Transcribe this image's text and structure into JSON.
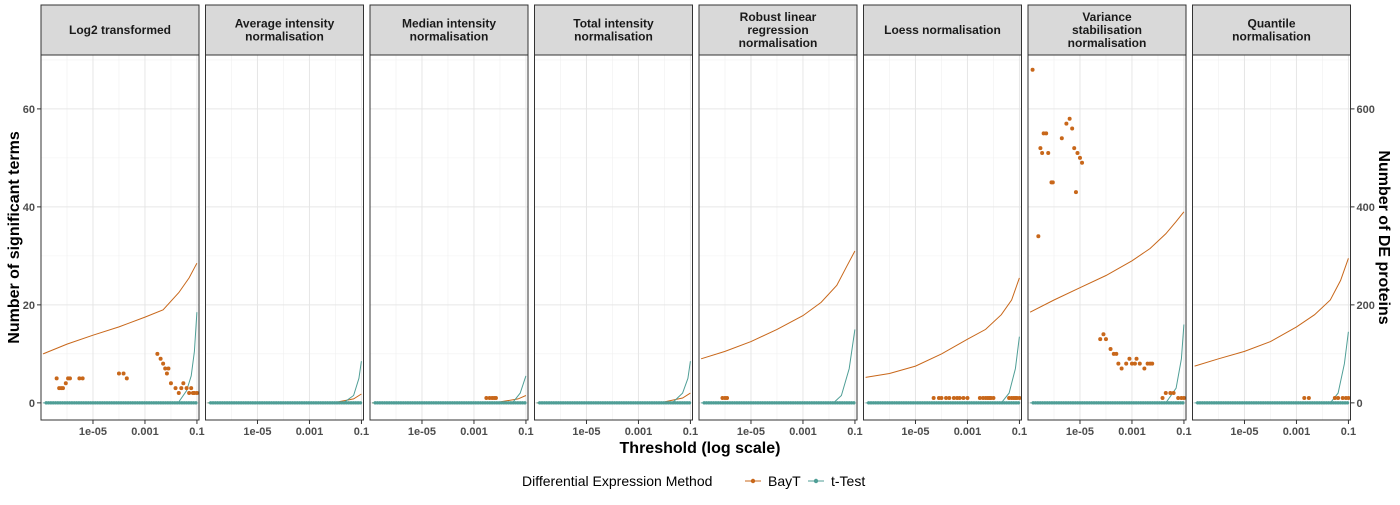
{
  "chart_data": {
    "type": "line",
    "xlabel": "Threshold (log scale)",
    "ylabel": "Number of significant terms",
    "y2label": "Number of DE proteins",
    "x_scale": "log10",
    "xlim": [
      1e-07,
      0.12
    ],
    "ylim": [
      -3.5,
      71
    ],
    "y2_range": [
      -35,
      710
    ],
    "x_ticks": [
      1e-05,
      0.001,
      0.1
    ],
    "x_tick_labels": [
      "1e-05",
      "0.001",
      "0.1"
    ],
    "y_ticks": [
      0,
      20,
      40,
      60
    ],
    "y2_ticks": [
      0,
      200,
      400,
      600
    ],
    "grid": true,
    "colors": {
      "BayT": "#c8671a",
      "t-Test": "#4f9e96"
    },
    "legend": {
      "title": "Differential Expression Method",
      "position": "bottom",
      "entries": [
        "BayT",
        "t-Test"
      ]
    },
    "description": "Lines = number of DE proteins (right axis); points = number of significant terms (left axis). Y values in left-axis units.",
    "panels": [
      {
        "title": "Log2 transformed",
        "bayt_line": {
          "x": [
            1.2e-07,
            1e-06,
            1e-05,
            0.0001,
            0.001,
            0.005,
            0.02,
            0.05,
            0.1
          ],
          "y": [
            10,
            12,
            13.8,
            15.5,
            17.5,
            19,
            22.5,
            25.5,
            28.5
          ]
        },
        "ttest_line": {
          "x": [
            1.2e-07,
            0.01,
            0.02,
            0.04,
            0.06,
            0.08,
            0.1
          ],
          "y": [
            0,
            0,
            0.2,
            2.5,
            5.5,
            10.5,
            18.5
          ]
        },
        "bayt_points": [
          {
            "x": 4e-07,
            "y": 5
          },
          {
            "x": 5e-07,
            "y": 3
          },
          {
            "x": 6e-07,
            "y": 3
          },
          {
            "x": 7e-07,
            "y": 3
          },
          {
            "x": 9e-07,
            "y": 4
          },
          {
            "x": 1.1e-06,
            "y": 5
          },
          {
            "x": 1.3e-06,
            "y": 5
          },
          {
            "x": 3e-06,
            "y": 5
          },
          {
            "x": 4e-06,
            "y": 5
          },
          {
            "x": 0.0001,
            "y": 6
          },
          {
            "x": 0.00015,
            "y": 6
          },
          {
            "x": 0.0002,
            "y": 5
          },
          {
            "x": 0.003,
            "y": 10
          },
          {
            "x": 0.004,
            "y": 9
          },
          {
            "x": 0.005,
            "y": 8
          },
          {
            "x": 0.006,
            "y": 7
          },
          {
            "x": 0.007,
            "y": 6
          },
          {
            "x": 0.008,
            "y": 7
          },
          {
            "x": 0.01,
            "y": 4
          },
          {
            "x": 0.015,
            "y": 3
          },
          {
            "x": 0.02,
            "y": 2
          },
          {
            "x": 0.025,
            "y": 3
          },
          {
            "x": 0.03,
            "y": 4
          },
          {
            "x": 0.04,
            "y": 3
          },
          {
            "x": 0.05,
            "y": 2
          },
          {
            "x": 0.06,
            "y": 3
          },
          {
            "x": 0.07,
            "y": 2
          },
          {
            "x": 0.08,
            "y": 2
          },
          {
            "x": 0.1,
            "y": 2
          }
        ]
      },
      {
        "title": "Average intensity normalisation",
        "bayt_line": {
          "x": [
            1.2e-07,
            0.001,
            0.01,
            0.05,
            0.1
          ],
          "y": [
            0,
            0,
            0.1,
            0.8,
            1.8
          ]
        },
        "ttest_line": {
          "x": [
            1.2e-07,
            0.02,
            0.05,
            0.08,
            0.1
          ],
          "y": [
            0,
            0,
            1.5,
            5,
            8.5
          ]
        },
        "bayt_points": []
      },
      {
        "title": "Median intensity normalisation",
        "bayt_line": {
          "x": [
            1.2e-07,
            0.001,
            0.01,
            0.05,
            0.1
          ],
          "y": [
            0,
            0,
            0.2,
            0.8,
            1.5
          ]
        },
        "ttest_line": {
          "x": [
            1.2e-07,
            0.03,
            0.06,
            0.1
          ],
          "y": [
            0,
            0,
            2,
            5.5
          ]
        },
        "bayt_points": [
          {
            "x": 0.003,
            "y": 1
          },
          {
            "x": 0.004,
            "y": 1
          },
          {
            "x": 0.005,
            "y": 1
          },
          {
            "x": 0.006,
            "y": 1
          },
          {
            "x": 0.007,
            "y": 1
          }
        ]
      },
      {
        "title": "Total intensity normalisation",
        "bayt_line": {
          "x": [
            1.2e-07,
            0.001,
            0.01,
            0.05,
            0.1
          ],
          "y": [
            0,
            0,
            0.2,
            1,
            2
          ]
        },
        "ttest_line": {
          "x": [
            1.2e-07,
            0.02,
            0.05,
            0.08,
            0.1
          ],
          "y": [
            0,
            0,
            2,
            5,
            8.5
          ]
        },
        "bayt_points": []
      },
      {
        "title": "Robust linear regression normalisation",
        "bayt_line": {
          "x": [
            1.2e-07,
            1e-06,
            1e-05,
            0.0001,
            0.001,
            0.005,
            0.02,
            0.05,
            0.1
          ],
          "y": [
            9,
            10.5,
            12.5,
            15,
            17.8,
            20.5,
            24,
            28,
            31
          ]
        },
        "ttest_line": {
          "x": [
            1.2e-07,
            0.015,
            0.03,
            0.06,
            0.1
          ],
          "y": [
            0,
            0,
            1.5,
            7,
            15
          ]
        },
        "bayt_points": [
          {
            "x": 8e-07,
            "y": 1
          },
          {
            "x": 1e-06,
            "y": 1
          },
          {
            "x": 1.2e-06,
            "y": 1
          }
        ]
      },
      {
        "title": "Loess normalisation",
        "bayt_line": {
          "x": [
            1.2e-07,
            1e-06,
            1e-05,
            0.0001,
            0.001,
            0.005,
            0.02,
            0.05,
            0.1
          ],
          "y": [
            5.2,
            6,
            7.5,
            10,
            13,
            15,
            18,
            21,
            25.5
          ]
        },
        "ttest_line": {
          "x": [
            1.2e-07,
            0.02,
            0.04,
            0.07,
            0.1
          ],
          "y": [
            0,
            0,
            2,
            7,
            13.5
          ]
        },
        "bayt_points": [
          {
            "x": 5e-05,
            "y": 1
          },
          {
            "x": 8e-05,
            "y": 1
          },
          {
            "x": 0.0001,
            "y": 1
          },
          {
            "x": 0.00015,
            "y": 1
          },
          {
            "x": 0.0002,
            "y": 1
          },
          {
            "x": 0.0003,
            "y": 1
          },
          {
            "x": 0.0004,
            "y": 1
          },
          {
            "x": 0.0005,
            "y": 1
          },
          {
            "x": 0.0007,
            "y": 1
          },
          {
            "x": 0.001,
            "y": 1
          },
          {
            "x": 0.003,
            "y": 1
          },
          {
            "x": 0.004,
            "y": 1
          },
          {
            "x": 0.005,
            "y": 1
          },
          {
            "x": 0.006,
            "y": 1
          },
          {
            "x": 0.007,
            "y": 1
          },
          {
            "x": 0.008,
            "y": 1
          },
          {
            "x": 0.01,
            "y": 1
          },
          {
            "x": 0.04,
            "y": 1
          },
          {
            "x": 0.05,
            "y": 1
          },
          {
            "x": 0.06,
            "y": 1
          },
          {
            "x": 0.07,
            "y": 1
          },
          {
            "x": 0.08,
            "y": 1
          },
          {
            "x": 0.1,
            "y": 1
          }
        ]
      },
      {
        "title": "Variance stabilisation normalisation",
        "bayt_line": {
          "x": [
            1.2e-07,
            1e-06,
            1e-05,
            0.0001,
            0.001,
            0.005,
            0.02,
            0.05,
            0.1
          ],
          "y": [
            18.5,
            21,
            23.5,
            26,
            29,
            31.5,
            34.5,
            37,
            39
          ]
        },
        "ttest_line": {
          "x": [
            1.2e-07,
            0.02,
            0.05,
            0.08,
            0.1
          ],
          "y": [
            0,
            0,
            3,
            9,
            16
          ]
        },
        "bayt_points": [
          {
            "x": 1.5e-07,
            "y": 68
          },
          {
            "x": 2.5e-07,
            "y": 34
          },
          {
            "x": 3e-07,
            "y": 52
          },
          {
            "x": 3.5e-07,
            "y": 51
          },
          {
            "x": 4e-07,
            "y": 55
          },
          {
            "x": 5e-07,
            "y": 55
          },
          {
            "x": 6e-07,
            "y": 51
          },
          {
            "x": 8e-07,
            "y": 45
          },
          {
            "x": 9e-07,
            "y": 45
          },
          {
            "x": 2e-06,
            "y": 54
          },
          {
            "x": 3e-06,
            "y": 57
          },
          {
            "x": 4e-06,
            "y": 58
          },
          {
            "x": 5e-06,
            "y": 56
          },
          {
            "x": 6e-06,
            "y": 52
          },
          {
            "x": 7e-06,
            "y": 43
          },
          {
            "x": 8e-06,
            "y": 51
          },
          {
            "x": 1e-05,
            "y": 50
          },
          {
            "x": 1.2e-05,
            "y": 49
          },
          {
            "x": 6e-05,
            "y": 13
          },
          {
            "x": 8e-05,
            "y": 14
          },
          {
            "x": 0.0001,
            "y": 13
          },
          {
            "x": 0.00015,
            "y": 11
          },
          {
            "x": 0.0002,
            "y": 10
          },
          {
            "x": 0.00025,
            "y": 10
          },
          {
            "x": 0.0003,
            "y": 8
          },
          {
            "x": 0.0004,
            "y": 7
          },
          {
            "x": 0.0006,
            "y": 8
          },
          {
            "x": 0.0008,
            "y": 9
          },
          {
            "x": 0.001,
            "y": 8
          },
          {
            "x": 0.0013,
            "y": 8
          },
          {
            "x": 0.0015,
            "y": 9
          },
          {
            "x": 0.002,
            "y": 8
          },
          {
            "x": 0.003,
            "y": 7
          },
          {
            "x": 0.004,
            "y": 8
          },
          {
            "x": 0.005,
            "y": 8
          },
          {
            "x": 0.006,
            "y": 8
          },
          {
            "x": 0.015,
            "y": 1
          },
          {
            "x": 0.02,
            "y": 2
          },
          {
            "x": 0.03,
            "y": 2
          },
          {
            "x": 0.04,
            "y": 2
          },
          {
            "x": 0.06,
            "y": 1
          },
          {
            "x": 0.08,
            "y": 1
          },
          {
            "x": 0.1,
            "y": 1
          }
        ]
      },
      {
        "title": "Quantile normalisation",
        "bayt_line": {
          "x": [
            1.2e-07,
            1e-06,
            1e-05,
            0.0001,
            0.001,
            0.005,
            0.02,
            0.05,
            0.1
          ],
          "y": [
            7.5,
            9,
            10.5,
            12.5,
            15.5,
            18,
            21,
            25,
            29.5
          ]
        },
        "ttest_line": {
          "x": [
            1.2e-07,
            0.02,
            0.04,
            0.07,
            0.1
          ],
          "y": [
            0,
            0,
            2,
            8,
            14.5
          ]
        },
        "bayt_points": [
          {
            "x": 0.002,
            "y": 1
          },
          {
            "x": 0.003,
            "y": 1
          },
          {
            "x": 0.03,
            "y": 1
          },
          {
            "x": 0.04,
            "y": 1
          },
          {
            "x": 0.06,
            "y": 1
          },
          {
            "x": 0.08,
            "y": 1
          },
          {
            "x": 0.1,
            "y": 1
          }
        ]
      }
    ]
  }
}
